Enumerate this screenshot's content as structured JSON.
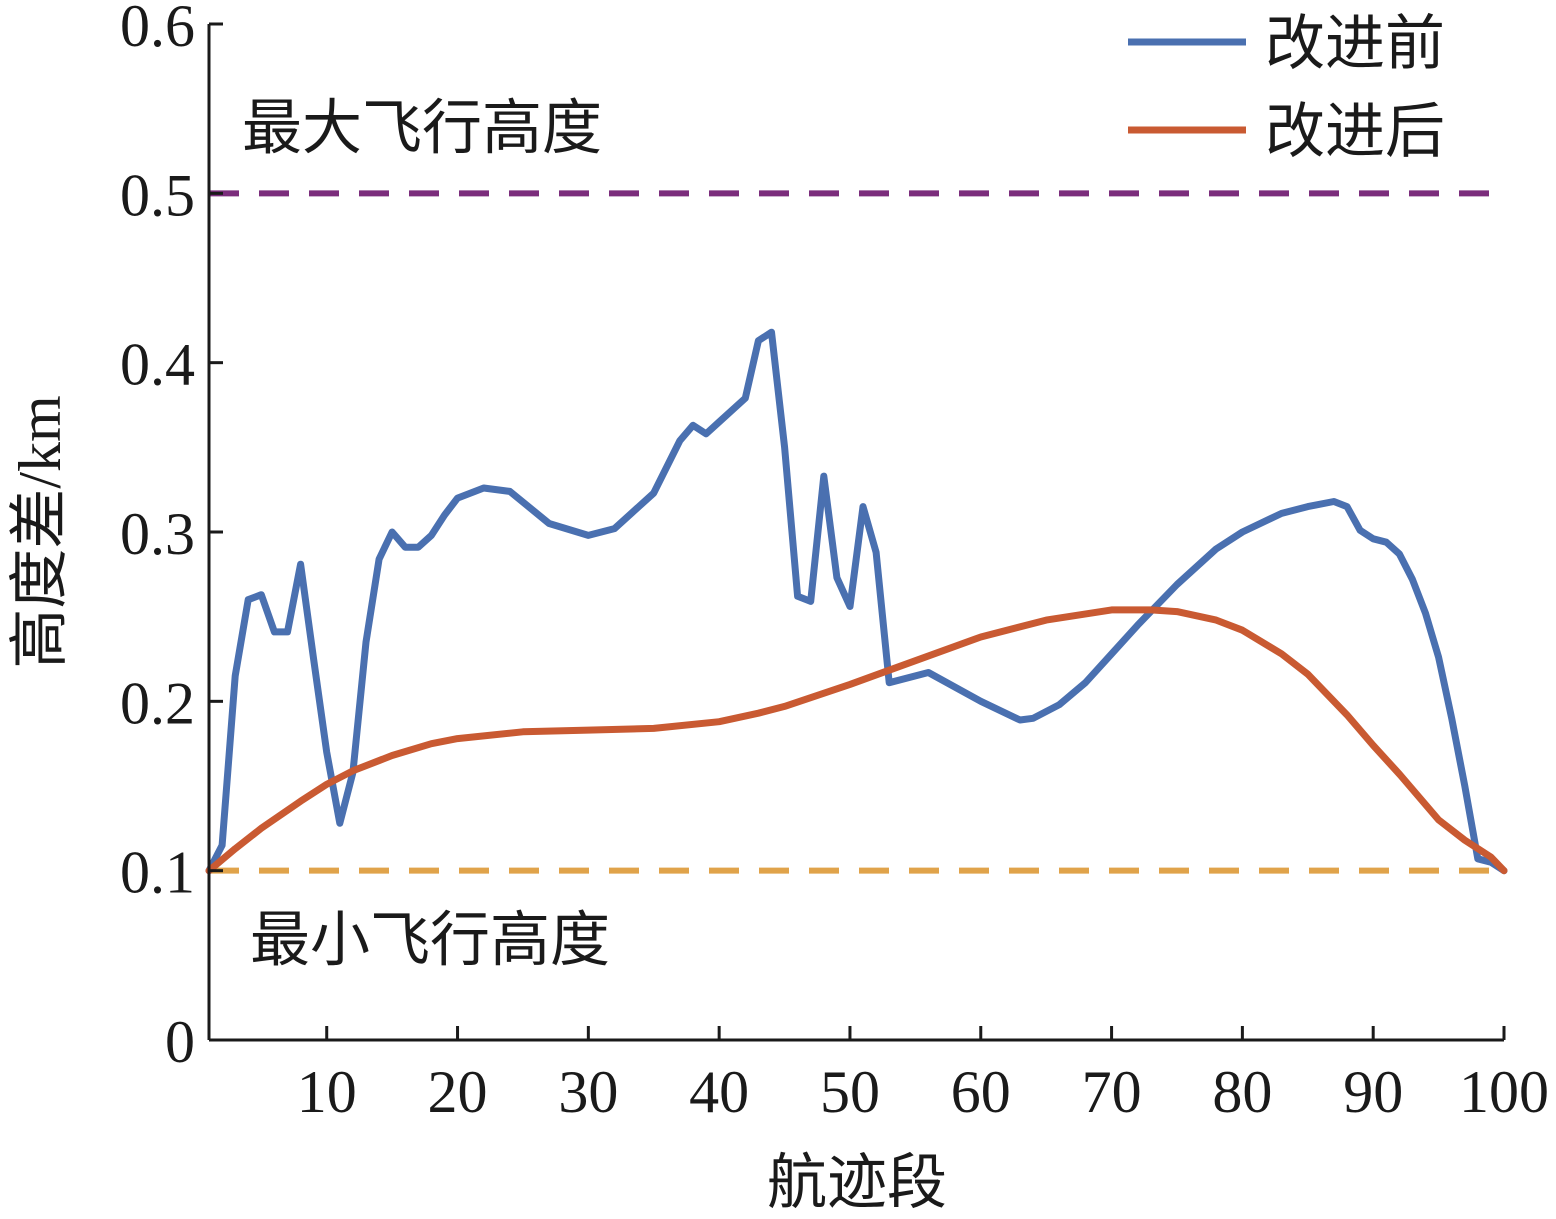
{
  "chart_data": {
    "type": "line",
    "xlabel": "航迹段",
    "ylabel": "高度差/km",
    "xlim": [
      1,
      100
    ],
    "ylim": [
      0,
      0.6
    ],
    "xticks": [
      10,
      20,
      30,
      40,
      50,
      60,
      70,
      80,
      90,
      100
    ],
    "xtick_labels": [
      "10",
      "20",
      "30",
      "40",
      "50",
      "60",
      "70",
      "80",
      "90",
      "100"
    ],
    "yticks": [
      0,
      0.1,
      0.2,
      0.3,
      0.4,
      0.5,
      0.6
    ],
    "ytick_labels": [
      "0",
      "0.1",
      "0.2",
      "0.3",
      "0.4",
      "0.5",
      "0.6"
    ],
    "grid": false,
    "legend_position": "top-right",
    "series": [
      {
        "name": "改进前",
        "color": "#4a70b0",
        "x": [
          1,
          2,
          3,
          4,
          5,
          6,
          7,
          8,
          9,
          10,
          11,
          12,
          13,
          14,
          15,
          16,
          17,
          18,
          19,
          20,
          22,
          24,
          27,
          30,
          32,
          35,
          37,
          38,
          39,
          40,
          42,
          43,
          44,
          45,
          46,
          47,
          48,
          49,
          50,
          51,
          52,
          53,
          56,
          60,
          63,
          64,
          66,
          68,
          70,
          72,
          75,
          78,
          80,
          83,
          85,
          87,
          88,
          89,
          90,
          91,
          92,
          93,
          94,
          95,
          96,
          97,
          98,
          99,
          100
        ],
        "y": [
          0.1,
          0.115,
          0.215,
          0.26,
          0.263,
          0.241,
          0.241,
          0.281,
          0.225,
          0.17,
          0.128,
          0.158,
          0.235,
          0.284,
          0.3,
          0.291,
          0.291,
          0.298,
          0.31,
          0.32,
          0.326,
          0.324,
          0.305,
          0.298,
          0.302,
          0.323,
          0.354,
          0.363,
          0.358,
          0.365,
          0.379,
          0.413,
          0.418,
          0.35,
          0.262,
          0.259,
          0.333,
          0.273,
          0.256,
          0.315,
          0.288,
          0.211,
          0.217,
          0.2,
          0.189,
          0.19,
          0.198,
          0.211,
          0.228,
          0.245,
          0.269,
          0.29,
          0.3,
          0.311,
          0.315,
          0.318,
          0.315,
          0.301,
          0.296,
          0.294,
          0.287,
          0.272,
          0.252,
          0.226,
          0.19,
          0.15,
          0.107,
          0.105,
          0.1
        ]
      },
      {
        "name": "改进后",
        "color": "#c95a32",
        "x": [
          1,
          3,
          5,
          8,
          10,
          12,
          15,
          18,
          20,
          25,
          30,
          35,
          40,
          43,
          45,
          50,
          55,
          60,
          65,
          70,
          73,
          75,
          78,
          80,
          83,
          85,
          88,
          90,
          92,
          95,
          97,
          99,
          100
        ],
        "y": [
          0.1,
          0.113,
          0.125,
          0.141,
          0.151,
          0.159,
          0.168,
          0.175,
          0.178,
          0.182,
          0.183,
          0.184,
          0.188,
          0.193,
          0.197,
          0.21,
          0.224,
          0.238,
          0.248,
          0.254,
          0.254,
          0.253,
          0.248,
          0.242,
          0.228,
          0.216,
          0.192,
          0.174,
          0.157,
          0.13,
          0.118,
          0.108,
          0.1
        ]
      }
    ],
    "reference_lines": [
      {
        "label": "最大飞行高度",
        "y": 0.5,
        "color": "#7b2d7c",
        "style": "dashed"
      },
      {
        "label": "最小飞行高度",
        "y": 0.1,
        "color": "#e0a34a",
        "style": "dashed"
      }
    ]
  }
}
